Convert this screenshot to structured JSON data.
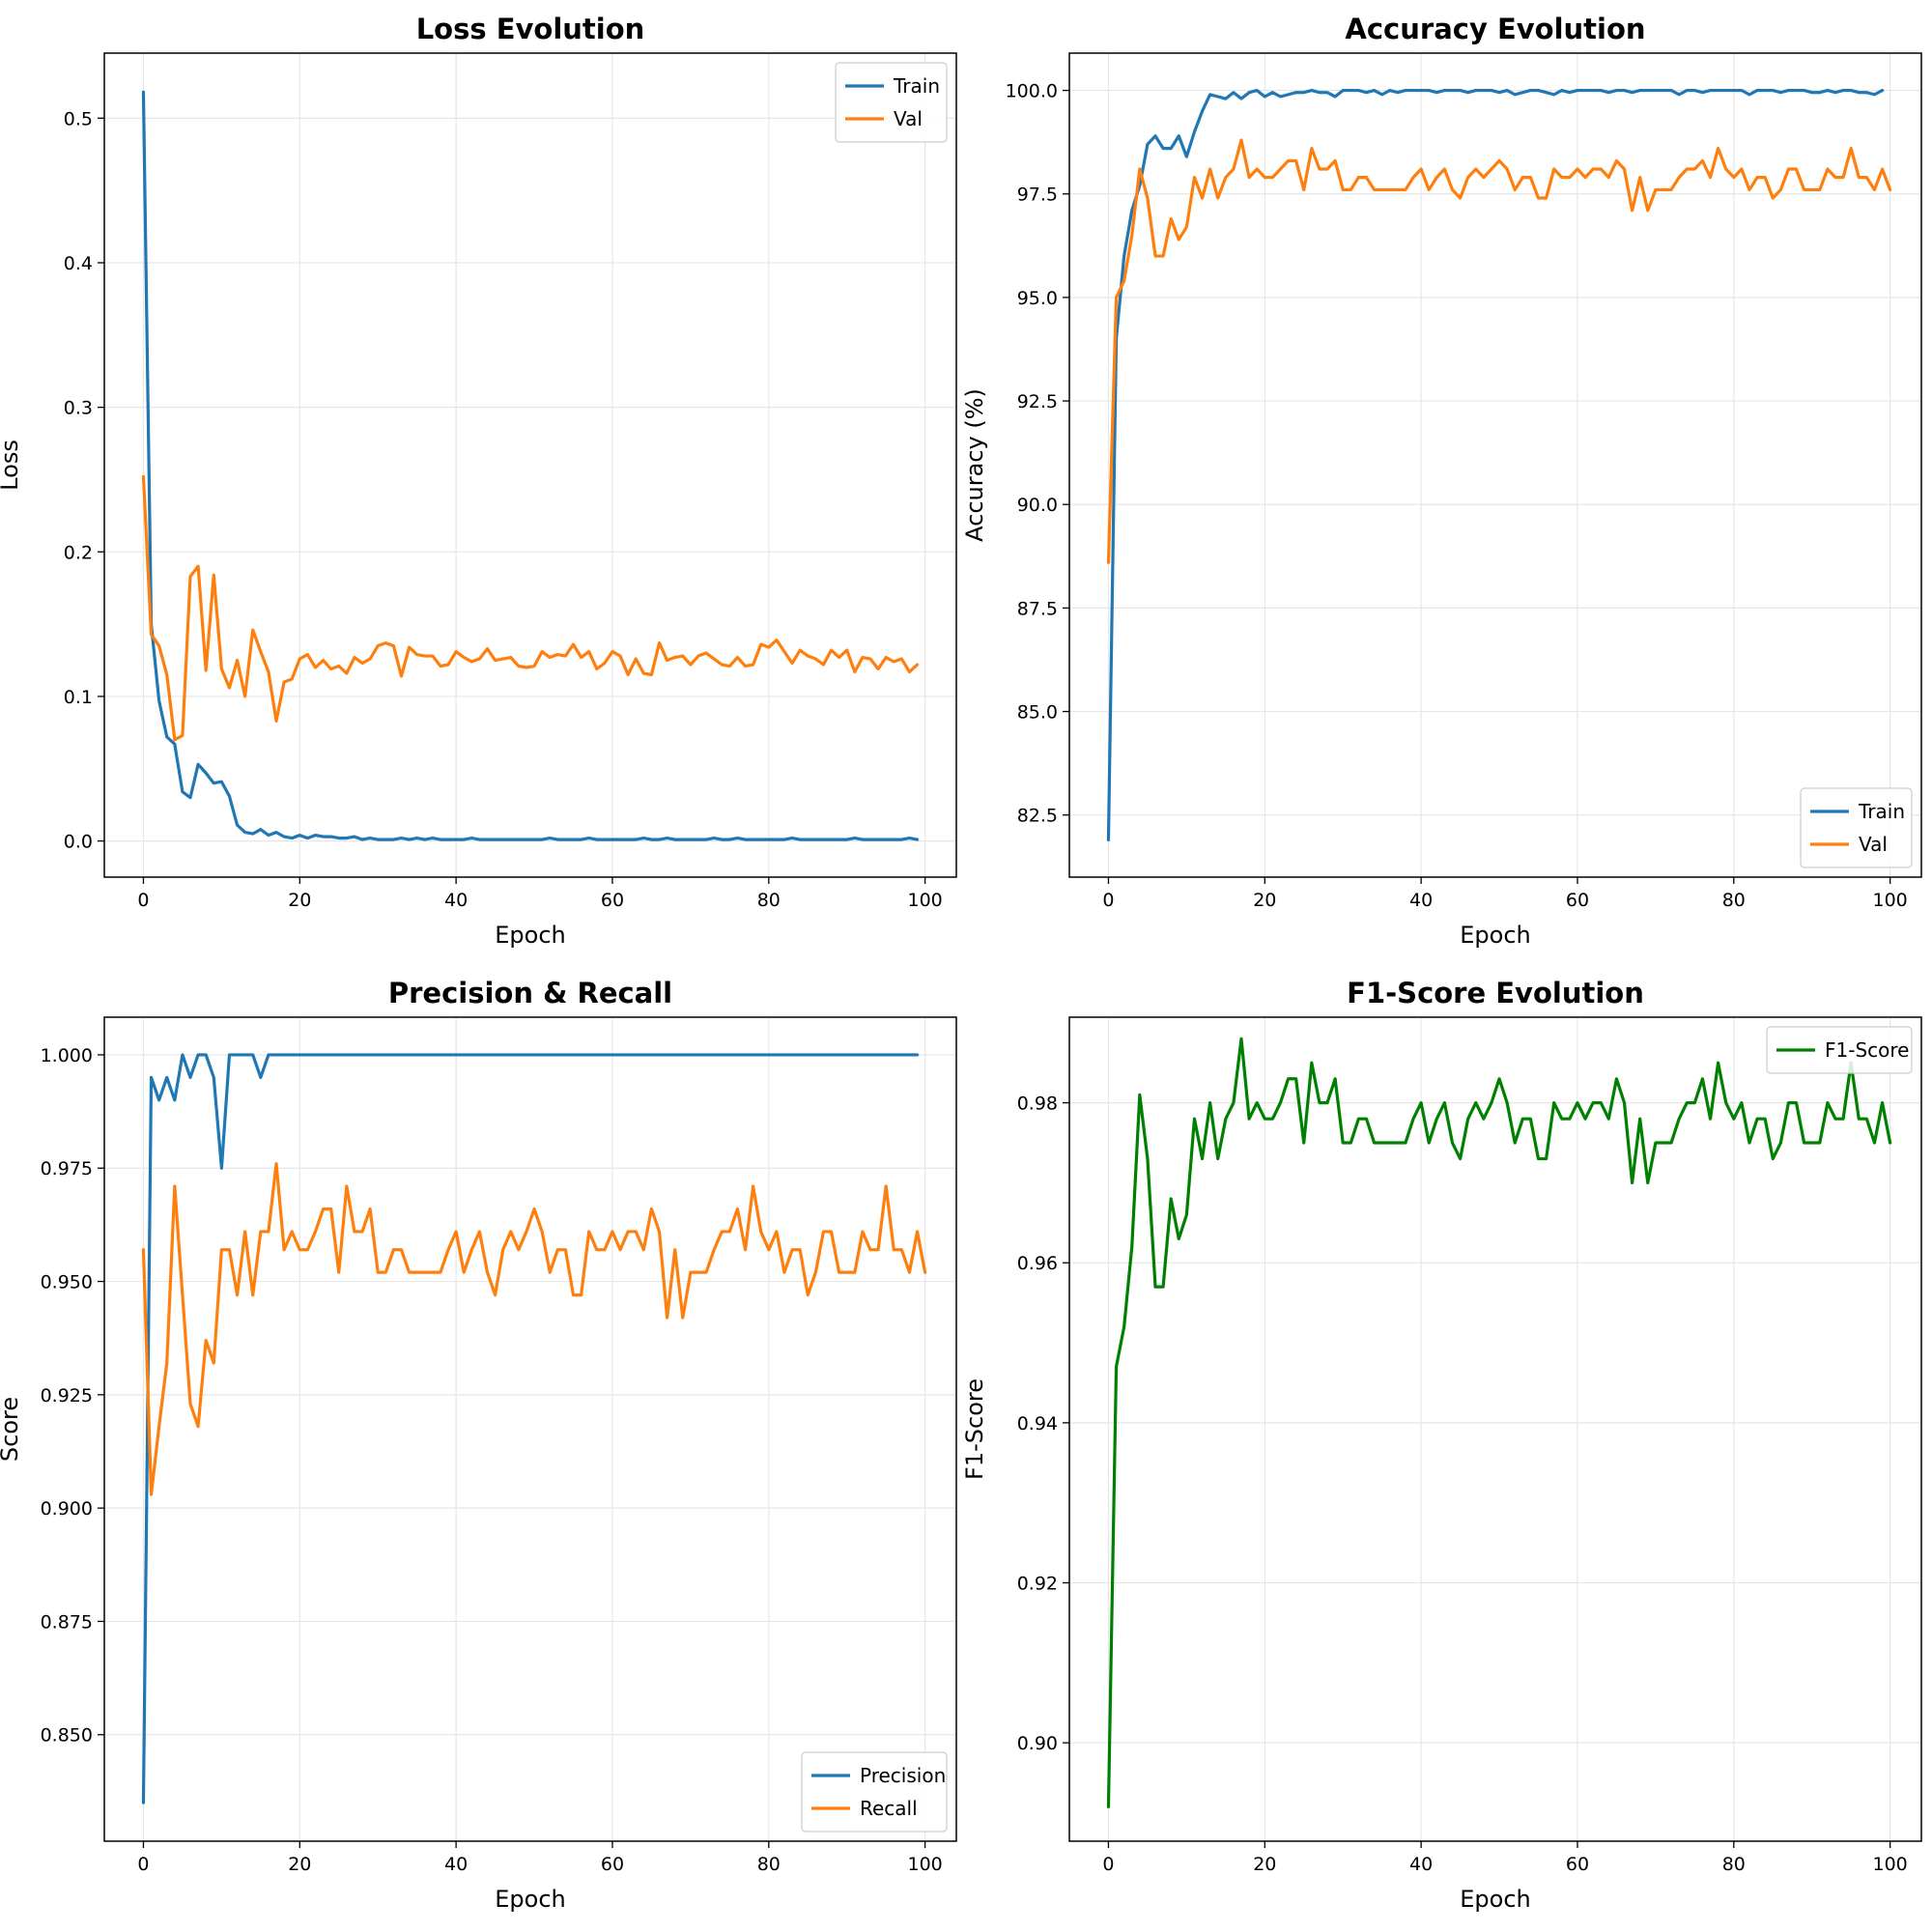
{
  "colors": {
    "blue": "#1f77b4",
    "orange": "#ff7f0e",
    "green": "#008000",
    "grid": "#e6e6e6"
  },
  "chart_data": [
    {
      "type": "line",
      "title": "Loss Evolution",
      "xlabel": "Epoch",
      "ylabel": "Loss",
      "xlim": [
        -5,
        104
      ],
      "ylim": [
        -0.025,
        0.545
      ],
      "xticks": [
        0,
        20,
        40,
        60,
        80,
        100
      ],
      "yticks": [
        0.0,
        0.1,
        0.2,
        0.3,
        0.4,
        0.5
      ],
      "ytick_decimals": 1,
      "grid": true,
      "legend_position": "top-right",
      "series": [
        {
          "name": "Train",
          "color": "#1f77b4",
          "values": [
            0.518,
            0.15,
            0.097,
            0.072,
            0.067,
            0.034,
            0.03,
            0.053,
            0.047,
            0.04,
            0.041,
            0.031,
            0.011,
            0.006,
            0.005,
            0.008,
            0.004,
            0.006,
            0.003,
            0.002,
            0.004,
            0.002,
            0.004,
            0.003,
            0.003,
            0.002,
            0.002,
            0.003,
            0.001,
            0.002,
            0.001,
            0.001,
            0.001,
            0.002,
            0.001,
            0.002,
            0.001,
            0.002,
            0.001,
            0.001,
            0.001,
            0.001,
            0.002,
            0.001,
            0.001,
            0.001,
            0.001,
            0.001,
            0.001,
            0.001,
            0.001,
            0.001,
            0.002,
            0.001,
            0.001,
            0.001,
            0.001,
            0.002,
            0.001,
            0.001,
            0.001,
            0.001,
            0.001,
            0.001,
            0.002,
            0.001,
            0.001,
            0.002,
            0.001,
            0.001,
            0.001,
            0.001,
            0.001,
            0.002,
            0.001,
            0.001,
            0.002,
            0.001,
            0.001,
            0.001,
            0.001,
            0.001,
            0.001,
            0.002,
            0.001,
            0.001,
            0.001,
            0.001,
            0.001,
            0.001,
            0.001,
            0.002,
            0.001,
            0.001,
            0.001,
            0.001,
            0.001,
            0.001,
            0.002,
            0.001
          ]
        },
        {
          "name": "Val",
          "color": "#ff7f0e",
          "values": [
            0.252,
            0.143,
            0.135,
            0.115,
            0.07,
            0.073,
            0.183,
            0.19,
            0.118,
            0.184,
            0.119,
            0.106,
            0.125,
            0.1,
            0.146,
            0.131,
            0.117,
            0.083,
            0.11,
            0.112,
            0.126,
            0.129,
            0.12,
            0.125,
            0.119,
            0.121,
            0.116,
            0.127,
            0.123,
            0.126,
            0.135,
            0.137,
            0.135,
            0.114,
            0.134,
            0.129,
            0.128,
            0.128,
            0.121,
            0.122,
            0.131,
            0.127,
            0.124,
            0.126,
            0.133,
            0.125,
            0.126,
            0.127,
            0.121,
            0.12,
            0.121,
            0.131,
            0.127,
            0.129,
            0.128,
            0.136,
            0.127,
            0.131,
            0.119,
            0.123,
            0.131,
            0.128,
            0.115,
            0.126,
            0.116,
            0.115,
            0.137,
            0.125,
            0.127,
            0.128,
            0.122,
            0.128,
            0.13,
            0.126,
            0.122,
            0.121,
            0.127,
            0.121,
            0.122,
            0.136,
            0.134,
            0.139,
            0.131,
            0.123,
            0.132,
            0.128,
            0.126,
            0.122,
            0.132,
            0.127,
            0.132,
            0.117,
            0.127,
            0.126,
            0.119,
            0.127,
            0.124,
            0.126,
            0.117,
            0.122
          ]
        }
      ]
    },
    {
      "type": "line",
      "title": "Accuracy Evolution",
      "xlabel": "Epoch",
      "ylabel": "Accuracy (%)",
      "xlim": [
        -5,
        104
      ],
      "ylim": [
        81.0,
        100.9
      ],
      "xticks": [
        0,
        20,
        40,
        60,
        80,
        100
      ],
      "yticks": [
        82.5,
        85.0,
        87.5,
        90.0,
        92.5,
        95.0,
        97.5,
        100.0
      ],
      "ytick_decimals": 1,
      "grid": true,
      "legend_position": "bottom-right",
      "series": [
        {
          "name": "Train",
          "color": "#1f77b4",
          "values": [
            81.9,
            94.0,
            96.0,
            97.1,
            97.7,
            98.7,
            98.9,
            98.6,
            98.6,
            98.9,
            98.4,
            99.0,
            99.5,
            99.9,
            99.85,
            99.8,
            99.95,
            99.8,
            99.95,
            100.0,
            99.85,
            99.95,
            99.85,
            99.9,
            99.95,
            99.95,
            100.0,
            99.95,
            99.95,
            99.85,
            100.0,
            100.0,
            100.0,
            99.95,
            100.0,
            99.9,
            100.0,
            99.95,
            100.0,
            100.0,
            100.0,
            100.0,
            99.95,
            100.0,
            100.0,
            100.0,
            99.95,
            100.0,
            100.0,
            100.0,
            99.95,
            100.0,
            99.9,
            99.95,
            100.0,
            100.0,
            99.95,
            99.9,
            100.0,
            99.95,
            100.0,
            100.0,
            100.0,
            100.0,
            99.95,
            100.0,
            100.0,
            99.95,
            100.0,
            100.0,
            100.0,
            100.0,
            100.0,
            99.9,
            100.0,
            100.0,
            99.95,
            100.0,
            100.0,
            100.0,
            100.0,
            100.0,
            99.9,
            100.0,
            100.0,
            100.0,
            99.95,
            100.0,
            100.0,
            100.0,
            99.95,
            99.95,
            100.0,
            99.95,
            100.0,
            100.0,
            99.95,
            99.95,
            99.9,
            100.0
          ]
        },
        {
          "name": "Val",
          "color": "#ff7f0e",
          "values": [
            88.6,
            95.0,
            95.4,
            96.5,
            98.1,
            97.4,
            96.0,
            96.0,
            96.9,
            96.4,
            96.7,
            97.9,
            97.4,
            98.1,
            97.4,
            97.9,
            98.1,
            98.8,
            97.9,
            98.1,
            97.9,
            97.9,
            98.1,
            98.3,
            98.3,
            97.6,
            98.6,
            98.1,
            98.1,
            98.3,
            97.6,
            97.6,
            97.9,
            97.9,
            97.6,
            97.6,
            97.6,
            97.6,
            97.6,
            97.9,
            98.1,
            97.6,
            97.9,
            98.1,
            97.6,
            97.4,
            97.9,
            98.1,
            97.9,
            98.1,
            98.3,
            98.1,
            97.6,
            97.9,
            97.9,
            97.4,
            97.4,
            98.1,
            97.9,
            97.9,
            98.1,
            97.9,
            98.1,
            98.1,
            97.9,
            98.3,
            98.1,
            97.1,
            97.9,
            97.1,
            97.6,
            97.6,
            97.6,
            97.9,
            98.1,
            98.1,
            98.3,
            97.9,
            98.6,
            98.1,
            97.9,
            98.1,
            97.6,
            97.9,
            97.9,
            97.4,
            97.6,
            98.1,
            98.1,
            97.6,
            97.6,
            97.6,
            98.1,
            97.9,
            97.9,
            98.6,
            97.9,
            97.9,
            97.6,
            98.1,
            97.6
          ]
        }
      ]
    },
    {
      "type": "line",
      "title": "Precision & Recall",
      "xlabel": "Epoch",
      "ylabel": "Score",
      "xlim": [
        -5,
        104
      ],
      "ylim": [
        0.8265,
        1.0083
      ],
      "xticks": [
        0,
        20,
        40,
        60,
        80,
        100
      ],
      "yticks": [
        0.85,
        0.875,
        0.9,
        0.925,
        0.95,
        0.975,
        1.0
      ],
      "ytick_decimals": 3,
      "grid": true,
      "legend_position": "bottom-right",
      "series": [
        {
          "name": "Precision",
          "color": "#1f77b4",
          "values": [
            0.835,
            0.995,
            0.99,
            0.995,
            0.99,
            1.0,
            0.995,
            1.0,
            1.0,
            0.995,
            0.975,
            1.0,
            1.0,
            1.0,
            1.0,
            0.995,
            1.0,
            1.0,
            1.0,
            1.0,
            1.0,
            1.0,
            1.0,
            1.0,
            1.0,
            1.0,
            1.0,
            1.0,
            1.0,
            1.0,
            1.0,
            1.0,
            1.0,
            1.0,
            1.0,
            1.0,
            1.0,
            1.0,
            1.0,
            1.0,
            1.0,
            1.0,
            1.0,
            1.0,
            1.0,
            1.0,
            1.0,
            1.0,
            1.0,
            1.0,
            1.0,
            1.0,
            1.0,
            1.0,
            1.0,
            1.0,
            1.0,
            1.0,
            1.0,
            1.0,
            1.0,
            1.0,
            1.0,
            1.0,
            1.0,
            1.0,
            1.0,
            1.0,
            1.0,
            1.0,
            1.0,
            1.0,
            1.0,
            1.0,
            1.0,
            1.0,
            1.0,
            1.0,
            1.0,
            1.0,
            1.0,
            1.0,
            1.0,
            1.0,
            1.0,
            1.0,
            1.0,
            1.0,
            1.0,
            1.0,
            1.0,
            1.0,
            1.0,
            1.0,
            1.0,
            1.0,
            1.0,
            1.0,
            1.0,
            1.0
          ]
        },
        {
          "name": "Recall",
          "color": "#ff7f0e",
          "values": [
            0.957,
            0.903,
            0.918,
            0.932,
            0.971,
            0.947,
            0.923,
            0.918,
            0.937,
            0.932,
            0.957,
            0.957,
            0.947,
            0.961,
            0.947,
            0.961,
            0.961,
            0.976,
            0.957,
            0.961,
            0.957,
            0.957,
            0.961,
            0.966,
            0.966,
            0.952,
            0.971,
            0.961,
            0.961,
            0.966,
            0.952,
            0.952,
            0.957,
            0.957,
            0.952,
            0.952,
            0.952,
            0.952,
            0.952,
            0.957,
            0.961,
            0.952,
            0.957,
            0.961,
            0.952,
            0.947,
            0.957,
            0.961,
            0.957,
            0.961,
            0.966,
            0.961,
            0.952,
            0.957,
            0.957,
            0.947,
            0.947,
            0.961,
            0.957,
            0.957,
            0.961,
            0.957,
            0.961,
            0.961,
            0.957,
            0.966,
            0.961,
            0.942,
            0.957,
            0.942,
            0.952,
            0.952,
            0.952,
            0.957,
            0.961,
            0.961,
            0.966,
            0.957,
            0.971,
            0.961,
            0.957,
            0.961,
            0.952,
            0.957,
            0.957,
            0.947,
            0.952,
            0.961,
            0.961,
            0.952,
            0.952,
            0.952,
            0.961,
            0.957,
            0.957,
            0.971,
            0.957,
            0.957,
            0.952,
            0.961,
            0.952
          ]
        }
      ]
    },
    {
      "type": "line",
      "title": "F1-Score Evolution",
      "xlabel": "Epoch",
      "ylabel": "F1-Score",
      "xlim": [
        -5,
        104
      ],
      "ylim": [
        0.8877,
        0.9907
      ],
      "xticks": [
        0,
        20,
        40,
        60,
        80,
        100
      ],
      "yticks": [
        0.9,
        0.92,
        0.94,
        0.96,
        0.98
      ],
      "ytick_decimals": 2,
      "grid": true,
      "legend_position": "top-right",
      "series": [
        {
          "name": "F1-Score",
          "color": "#008000",
          "values": [
            0.892,
            0.947,
            0.952,
            0.962,
            0.981,
            0.973,
            0.957,
            0.957,
            0.968,
            0.963,
            0.966,
            0.978,
            0.973,
            0.98,
            0.973,
            0.978,
            0.98,
            0.988,
            0.978,
            0.98,
            0.978,
            0.978,
            0.98,
            0.983,
            0.983,
            0.975,
            0.985,
            0.98,
            0.98,
            0.983,
            0.975,
            0.975,
            0.978,
            0.978,
            0.975,
            0.975,
            0.975,
            0.975,
            0.975,
            0.978,
            0.98,
            0.975,
            0.978,
            0.98,
            0.975,
            0.973,
            0.978,
            0.98,
            0.978,
            0.98,
            0.983,
            0.98,
            0.975,
            0.978,
            0.978,
            0.973,
            0.973,
            0.98,
            0.978,
            0.978,
            0.98,
            0.978,
            0.98,
            0.98,
            0.978,
            0.983,
            0.98,
            0.97,
            0.978,
            0.97,
            0.975,
            0.975,
            0.975,
            0.978,
            0.98,
            0.98,
            0.983,
            0.978,
            0.985,
            0.98,
            0.978,
            0.98,
            0.975,
            0.978,
            0.978,
            0.973,
            0.975,
            0.98,
            0.98,
            0.975,
            0.975,
            0.975,
            0.98,
            0.978,
            0.978,
            0.985,
            0.978,
            0.978,
            0.975,
            0.98,
            0.975
          ]
        }
      ]
    }
  ]
}
